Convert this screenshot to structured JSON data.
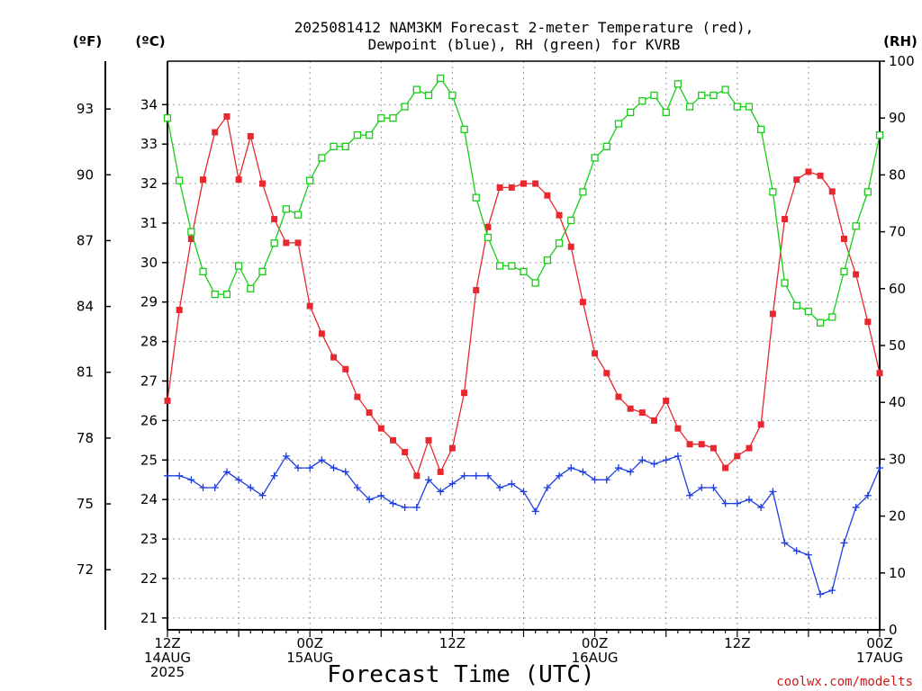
{
  "title_line1": "2025081412 NAM3KM Forecast 2-meter Temperature (red),",
  "title_line2": "Dewpoint (blue), RH (green) for KVRB",
  "unit_f": "(ºF)",
  "unit_c": "(ºC)",
  "unit_rh": "(RH)",
  "xlabel": "Forecast Time (UTC)",
  "credit": "coolwx.com/modelts",
  "colors": {
    "temperature": "#e8282e",
    "dewpoint": "#1e3ee0",
    "rh": "#18cc18",
    "axis": "#000000"
  },
  "chart_data": {
    "type": "line",
    "x_unit": "forecast hour from 2025-08-14 12Z",
    "xlim": [
      0,
      60
    ],
    "ylim_c": [
      20.7,
      35.1
    ],
    "ylim_rh": [
      0,
      100
    ],
    "grid": true,
    "fahrenheit_ticks": [
      "72",
      "75",
      "78",
      "81",
      "84",
      "87",
      "90",
      "93"
    ],
    "celsius_ticks": [
      "21",
      "22",
      "23",
      "24",
      "25",
      "26",
      "27",
      "28",
      "29",
      "30",
      "31",
      "32",
      "33",
      "34"
    ],
    "rh_ticks": [
      "0",
      "10",
      "20",
      "30",
      "40",
      "50",
      "60",
      "70",
      "80",
      "90",
      "100"
    ],
    "x_ticks": [
      {
        "hour": 0,
        "lines": [
          "12Z",
          "14AUG",
          "2025"
        ]
      },
      {
        "hour": 12,
        "lines": [
          "00Z",
          "15AUG"
        ]
      },
      {
        "hour": 24,
        "lines": [
          "12Z"
        ]
      },
      {
        "hour": 36,
        "lines": [
          "00Z",
          "16AUG"
        ]
      },
      {
        "hour": 48,
        "lines": [
          "12Z"
        ]
      },
      {
        "hour": 60,
        "lines": [
          "00Z",
          "17AUG"
        ]
      }
    ],
    "series": [
      {
        "key": "temperature",
        "marker": "filled-square",
        "axis": "celsius",
        "x": [
          0,
          1,
          2,
          3,
          4,
          5,
          6,
          7,
          8,
          9,
          10,
          11,
          12,
          13,
          14,
          15,
          16,
          17,
          18,
          19,
          20,
          21,
          22,
          23,
          24,
          25,
          26,
          27,
          28,
          29,
          30,
          31,
          32,
          33,
          34,
          35,
          36,
          37,
          38,
          39,
          40,
          41,
          42,
          43,
          44,
          45,
          46,
          47,
          48,
          49,
          50,
          51,
          52,
          53,
          54,
          55,
          56,
          57,
          58,
          59,
          60
        ],
        "values": [
          26.5,
          28.8,
          30.6,
          32.1,
          33.3,
          33.7,
          32.1,
          33.2,
          32.0,
          31.1,
          30.5,
          30.5,
          28.9,
          28.2,
          27.6,
          27.3,
          26.6,
          26.2,
          25.8,
          25.5,
          25.2,
          24.6,
          25.5,
          24.7,
          25.3,
          26.7,
          29.3,
          30.9,
          31.9,
          31.9,
          32.0,
          32.0,
          31.7,
          31.2,
          30.4,
          29.0,
          27.7,
          27.2,
          26.6,
          26.3,
          26.2,
          26.0,
          26.5,
          25.8,
          25.4,
          25.4,
          25.3,
          24.8,
          25.1,
          25.3,
          25.9,
          28.7,
          31.1,
          32.1,
          32.3,
          32.2,
          31.8,
          30.6,
          29.7,
          28.5,
          27.2
        ]
      },
      {
        "key": "dewpoint",
        "marker": "plus",
        "axis": "celsius",
        "x": [
          0,
          1,
          2,
          3,
          4,
          5,
          6,
          7,
          8,
          9,
          10,
          11,
          12,
          13,
          14,
          15,
          16,
          17,
          18,
          19,
          20,
          21,
          22,
          23,
          24,
          25,
          26,
          27,
          28,
          29,
          30,
          31,
          32,
          33,
          34,
          35,
          36,
          37,
          38,
          39,
          40,
          41,
          42,
          43,
          44,
          45,
          46,
          47,
          48,
          49,
          50,
          51,
          52,
          53,
          54,
          55,
          56,
          57,
          58,
          59,
          60
        ],
        "values": [
          24.6,
          24.6,
          24.5,
          24.3,
          24.3,
          24.7,
          24.5,
          24.3,
          24.1,
          24.6,
          25.1,
          24.8,
          24.8,
          25.0,
          24.8,
          24.7,
          24.3,
          24.0,
          24.1,
          23.9,
          23.8,
          23.8,
          24.5,
          24.2,
          24.4,
          24.6,
          24.6,
          24.6,
          24.3,
          24.4,
          24.2,
          23.7,
          24.3,
          24.6,
          24.8,
          24.7,
          24.5,
          24.5,
          24.8,
          24.7,
          25.0,
          24.9,
          25.0,
          25.1,
          24.1,
          24.3,
          24.3,
          23.9,
          23.9,
          24.0,
          23.8,
          24.2,
          22.9,
          22.7,
          22.6,
          21.6,
          21.7,
          22.9,
          23.8,
          24.1,
          24.8
        ]
      },
      {
        "key": "rh",
        "marker": "open-square",
        "axis": "rh",
        "x": [
          0,
          1,
          2,
          3,
          4,
          5,
          6,
          7,
          8,
          9,
          10,
          11,
          12,
          13,
          14,
          15,
          16,
          17,
          18,
          19,
          20,
          21,
          22,
          23,
          24,
          25,
          26,
          27,
          28,
          29,
          30,
          31,
          32,
          33,
          34,
          35,
          36,
          37,
          38,
          39,
          40,
          41,
          42,
          43,
          44,
          45,
          46,
          47,
          48,
          49,
          50,
          51,
          52,
          53,
          54,
          55,
          56,
          57,
          58,
          59,
          60
        ],
        "values": [
          90,
          79,
          70,
          63,
          59,
          59,
          64,
          60,
          63,
          68,
          74,
          73,
          79,
          83,
          85,
          85,
          87,
          87,
          90,
          90,
          92,
          95,
          94,
          97,
          94,
          88,
          76,
          69,
          64,
          64,
          63,
          61,
          65,
          68,
          72,
          77,
          83,
          85,
          89,
          91,
          93,
          94,
          91,
          96,
          92,
          94,
          94,
          95,
          92,
          92,
          88,
          77,
          61,
          57,
          56,
          54,
          55,
          63,
          71,
          77,
          87
        ]
      }
    ]
  }
}
